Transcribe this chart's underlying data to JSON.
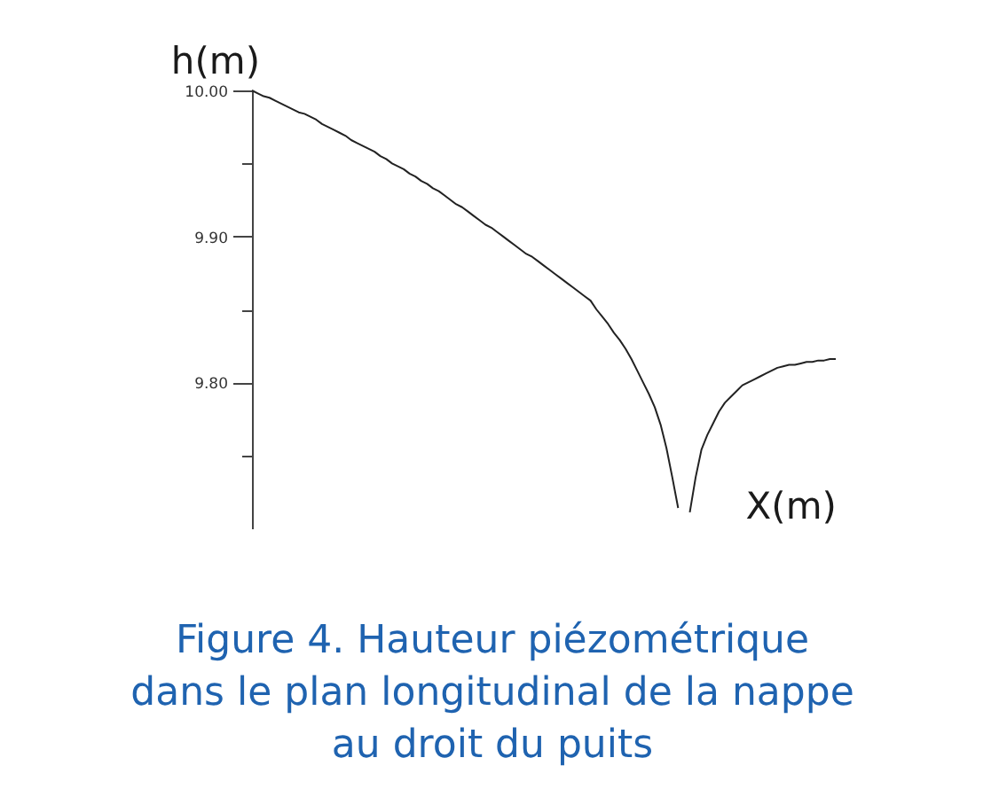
{
  "chart_data": {
    "type": "line",
    "title": "Figure 4. Hauteur piézométrique\ndans le plan longitudinal de la nappe\nau droit du puits",
    "xlabel": "X(m)",
    "ylabel": "h(m)",
    "categories": [
      null,
      null,
      null,
      null,
      null,
      null,
      null,
      null,
      null,
      null,
      null,
      null,
      null,
      null,
      null,
      null,
      null,
      null,
      null,
      null,
      null,
      null,
      null,
      null,
      null,
      null,
      null,
      null,
      null,
      null,
      null,
      null,
      null,
      null,
      null,
      null,
      null,
      null,
      null,
      null,
      null,
      null,
      null,
      null,
      null,
      null,
      null,
      null,
      null,
      null,
      null,
      null,
      null,
      null,
      null,
      null,
      null,
      null,
      null,
      null,
      null,
      null,
      null,
      null,
      null,
      null,
      null,
      null,
      null,
      null,
      null,
      null,
      null,
      null,
      null,
      null,
      null,
      null,
      null,
      null,
      null,
      null,
      null,
      null,
      null,
      null,
      null,
      null,
      null,
      null,
      null,
      null,
      null,
      null,
      null,
      null,
      null,
      null,
      null,
      null,
      null
    ],
    "series": [
      {
        "color": "#222222",
        "values": [
          10.0,
          9.998,
          9.996,
          9.995,
          9.993,
          9.991,
          9.989,
          9.987,
          9.985,
          9.984,
          9.982,
          9.98,
          9.977,
          9.975,
          9.973,
          9.971,
          9.969,
          9.966,
          9.964,
          9.962,
          9.96,
          9.958,
          9.955,
          9.953,
          9.95,
          9.948,
          9.946,
          9.943,
          9.941,
          9.938,
          9.936,
          9.933,
          9.931,
          9.928,
          9.925,
          9.922,
          9.92,
          9.917,
          9.914,
          9.911,
          9.908,
          9.906,
          9.903,
          9.9,
          9.897,
          9.894,
          9.891,
          9.888,
          9.886,
          9.883,
          9.88,
          9.877,
          9.874,
          9.871,
          9.868,
          9.865,
          9.862,
          9.859,
          9.856,
          9.85,
          9.845,
          9.84,
          9.834,
          9.829,
          9.823,
          9.816,
          9.808,
          9.8,
          9.792,
          9.783,
          9.771,
          9.755,
          9.735,
          9.714,
          null,
          null,
          null,
          null,
          null,
          null,
          null,
          null,
          null,
          null,
          null,
          null,
          null,
          null,
          null,
          null,
          null,
          null,
          null,
          null,
          null,
          null,
          null,
          null,
          null,
          null,
          null
        ]
      },
      {
        "color": "#222222",
        "values": [
          null,
          null,
          null,
          null,
          null,
          null,
          null,
          null,
          null,
          null,
          null,
          null,
          null,
          null,
          null,
          null,
          null,
          null,
          null,
          null,
          null,
          null,
          null,
          null,
          null,
          null,
          null,
          null,
          null,
          null,
          null,
          null,
          null,
          null,
          null,
          null,
          null,
          null,
          null,
          null,
          null,
          null,
          null,
          null,
          null,
          null,
          null,
          null,
          null,
          null,
          null,
          null,
          null,
          null,
          null,
          null,
          null,
          null,
          null,
          null,
          null,
          null,
          null,
          null,
          null,
          null,
          null,
          null,
          null,
          null,
          null,
          null,
          null,
          null,
          null,
          9.711,
          9.735,
          9.754,
          9.764,
          9.772,
          9.78,
          9.786,
          9.79,
          9.794,
          9.798,
          9.8,
          9.802,
          9.804,
          9.806,
          9.808,
          9.81,
          9.811,
          9.812,
          9.812,
          9.813,
          9.814,
          9.814,
          9.815,
          9.815,
          9.816,
          9.816
        ]
      }
    ],
    "ylim": [
      9.7,
      10.0
    ],
    "yticks": [
      {
        "value": 9.75,
        "label": null
      },
      {
        "value": 9.8,
        "label": "9.80"
      },
      {
        "value": 9.85,
        "label": null
      },
      {
        "value": 9.9,
        "label": "9.90"
      },
      {
        "value": 9.95,
        "label": null
      },
      {
        "value": 10.0,
        "label": "10.00"
      }
    ],
    "tick_labels": "y"
  }
}
